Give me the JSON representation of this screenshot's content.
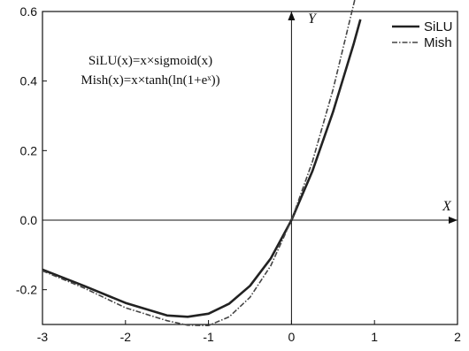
{
  "chart_data": {
    "type": "line",
    "xlim": [
      -3,
      2
    ],
    "ylim": [
      -0.3,
      0.6
    ],
    "x_ticks": [
      -3,
      -2,
      -1,
      0,
      1,
      2
    ],
    "y_ticks": [
      -0.2,
      0.0,
      0.2,
      0.4,
      0.6
    ],
    "x_tick_labels": [
      "-3",
      "-2",
      "-1",
      "0",
      "1",
      "2"
    ],
    "y_tick_labels": [
      "-0.2",
      "0.0",
      "0.2",
      "0.4",
      "0.6"
    ],
    "xlabel": "X",
    "ylabel": "Y",
    "grid": false,
    "legend_position": "top-right",
    "annotations": [
      "SiLU(x)=x×sigmoid(x)",
      "Mish(x)=x×tanh(ln(1+eˣ))"
    ],
    "x": [
      -3.0,
      -2.5,
      -2.0,
      -1.5,
      -1.25,
      -1.0,
      -0.75,
      -0.5,
      -0.25,
      0.0,
      0.25,
      0.5,
      0.75,
      0.83
    ],
    "series": [
      {
        "name": "SiLU",
        "style": "solid",
        "color": "#222222",
        "values": [
          -0.142,
          -0.189,
          -0.238,
          -0.274,
          -0.278,
          -0.269,
          -0.24,
          -0.189,
          -0.11,
          0.0,
          0.14,
          0.311,
          0.508,
          0.577
        ]
      },
      {
        "name": "Mish",
        "style": "dashdot",
        "color": "#444444",
        "values": [
          -0.146,
          -0.195,
          -0.252,
          -0.289,
          -0.302,
          -0.303,
          -0.278,
          -0.222,
          -0.131,
          0.0,
          0.167,
          0.375,
          0.622,
          0.7
        ]
      }
    ]
  }
}
